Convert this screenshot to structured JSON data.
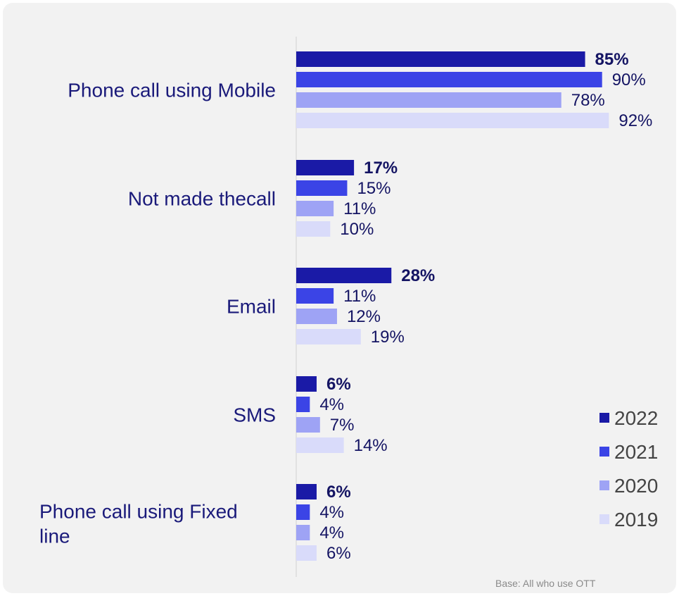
{
  "chart_data": {
    "type": "bar",
    "orientation": "horizontal",
    "categories": [
      [
        "Phone call using Mobile"
      ],
      [
        "Not made thecall"
      ],
      [
        "Email"
      ],
      [
        "SMS"
      ],
      [
        "Phone call using Fixed",
        "line"
      ]
    ],
    "series": [
      {
        "name": "2022",
        "values": [
          85,
          17,
          28,
          6,
          6
        ],
        "color": "#1a1aa6",
        "bold_labels": true
      },
      {
        "name": "2021",
        "values": [
          90,
          15,
          11,
          4,
          4
        ],
        "color": "#3b44e6",
        "bold_labels": false
      },
      {
        "name": "2020",
        "values": [
          78,
          11,
          12,
          7,
          4
        ],
        "color": "#9ea3f5",
        "bold_labels": false
      },
      {
        "name": "2019",
        "values": [
          92,
          10,
          19,
          14,
          6
        ],
        "color": "#d9dbfa",
        "bold_labels": false
      }
    ],
    "value_suffix": "%",
    "xlim": [
      0,
      100
    ],
    "legend_position": "right",
    "grid": false
  },
  "footnote": "Base: All who use OTT"
}
